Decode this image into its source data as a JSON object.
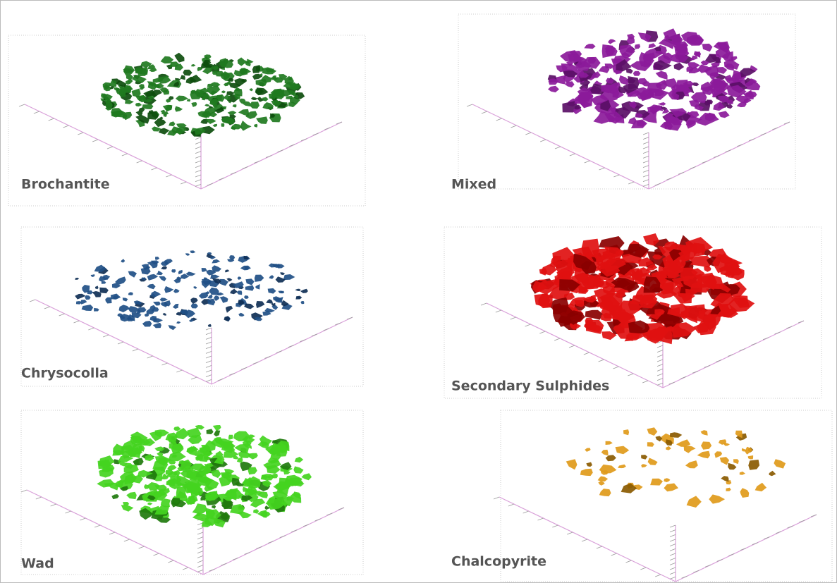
{
  "panels": [
    {
      "label": "Brochantite"
    },
    {
      "label": "Mixed"
    },
    {
      "label": "Chrysocolla"
    },
    {
      "label": "Secondary Sulphides"
    },
    {
      "label": "Wad"
    },
    {
      "label": "Chalcopyrite"
    }
  ]
}
